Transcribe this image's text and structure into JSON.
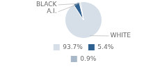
{
  "chart_data": {
    "type": "pie",
    "categories": [
      "WHITE",
      "A.I.",
      "BLACK"
    ],
    "values": [
      93.7,
      5.4,
      0.9
    ],
    "value_labels": [
      "93.7%",
      "5.4%",
      "0.9%"
    ],
    "colors": [
      "#d6dfe8",
      "#2e6090",
      "#a8b8c8"
    ],
    "legend": "bottom"
  }
}
